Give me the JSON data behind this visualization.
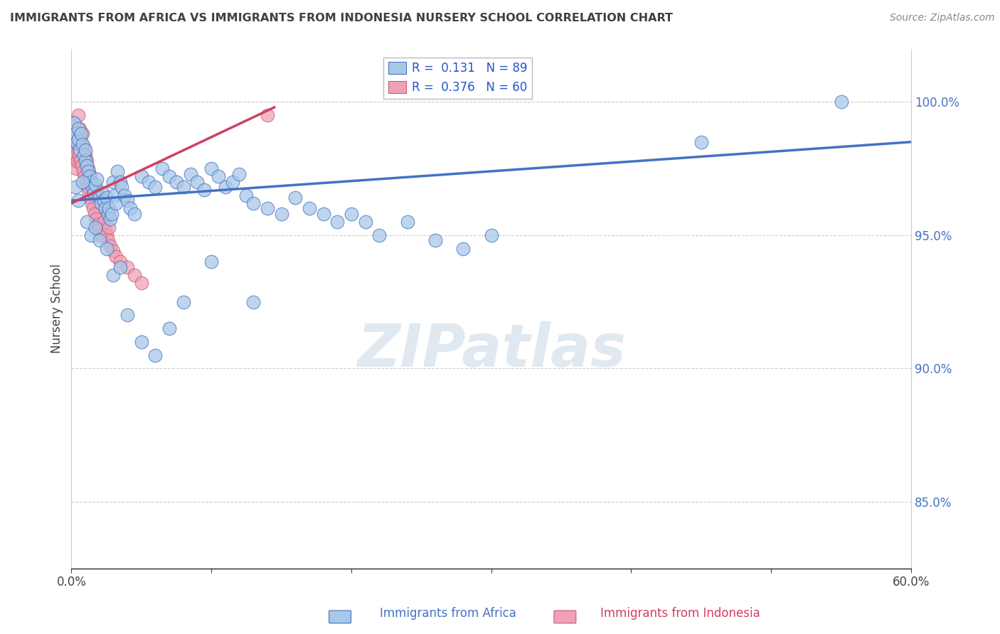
{
  "title": "IMMIGRANTS FROM AFRICA VS IMMIGRANTS FROM INDONESIA NURSERY SCHOOL CORRELATION CHART",
  "source": "Source: ZipAtlas.com",
  "xlabel_blue": "Immigrants from Africa",
  "xlabel_pink": "Immigrants from Indonesia",
  "ylabel": "Nursery School",
  "xlim": [
    0.0,
    60.0
  ],
  "ylim": [
    82.5,
    102.0
  ],
  "yticks": [
    85.0,
    90.0,
    95.0,
    100.0
  ],
  "ytick_labels": [
    "85.0%",
    "90.0%",
    "95.0%",
    "100.0%"
  ],
  "xticks": [
    0.0,
    10.0,
    20.0,
    30.0,
    40.0,
    50.0,
    60.0
  ],
  "xtick_labels": [
    "0.0%",
    "",
    "",
    "",
    "",
    "",
    "60.0%"
  ],
  "legend_R_blue": "R =  0.131",
  "legend_N_blue": "N = 89",
  "legend_R_pink": "R =  0.376",
  "legend_N_pink": "N = 60",
  "blue_color": "#a8c8e8",
  "pink_color": "#f0a0b8",
  "trend_blue": "#4472c4",
  "trend_pink": "#d04060",
  "legend_text_color": "#2255cc",
  "title_color": "#404040",
  "blue_scatter_x": [
    0.2,
    0.3,
    0.4,
    0.5,
    0.5,
    0.6,
    0.7,
    0.8,
    0.9,
    1.0,
    1.0,
    1.1,
    1.2,
    1.3,
    1.4,
    1.5,
    1.6,
    1.7,
    1.8,
    1.9,
    2.0,
    2.1,
    2.2,
    2.3,
    2.4,
    2.5,
    2.6,
    2.7,
    2.8,
    2.9,
    3.0,
    3.1,
    3.2,
    3.3,
    3.5,
    3.6,
    3.8,
    4.0,
    4.2,
    4.5,
    5.0,
    5.5,
    6.0,
    6.5,
    7.0,
    7.5,
    8.0,
    8.5,
    9.0,
    9.5,
    10.0,
    10.5,
    11.0,
    11.5,
    12.0,
    12.5,
    13.0,
    14.0,
    15.0,
    16.0,
    17.0,
    18.0,
    19.0,
    20.0,
    21.0,
    22.0,
    24.0,
    26.0,
    28.0,
    30.0,
    0.3,
    0.5,
    0.8,
    1.1,
    1.4,
    1.7,
    2.0,
    2.5,
    3.0,
    3.5,
    4.0,
    5.0,
    6.0,
    7.0,
    8.0,
    10.0,
    13.0,
    55.0,
    45.0
  ],
  "blue_scatter_y": [
    99.2,
    98.8,
    98.5,
    98.6,
    99.0,
    98.2,
    98.8,
    98.4,
    98.0,
    97.8,
    98.2,
    97.6,
    97.4,
    97.2,
    97.0,
    96.8,
    96.6,
    96.9,
    97.1,
    96.5,
    96.4,
    96.2,
    96.6,
    96.3,
    96.0,
    96.4,
    95.8,
    96.0,
    95.6,
    95.8,
    97.0,
    96.5,
    96.2,
    97.4,
    97.0,
    96.8,
    96.5,
    96.3,
    96.0,
    95.8,
    97.2,
    97.0,
    96.8,
    97.5,
    97.2,
    97.0,
    96.8,
    97.3,
    97.0,
    96.7,
    97.5,
    97.2,
    96.8,
    97.0,
    97.3,
    96.5,
    96.2,
    96.0,
    95.8,
    96.4,
    96.0,
    95.8,
    95.5,
    95.8,
    95.5,
    95.0,
    95.5,
    94.8,
    94.5,
    95.0,
    96.8,
    96.3,
    97.0,
    95.5,
    95.0,
    95.3,
    94.8,
    94.5,
    93.5,
    93.8,
    92.0,
    91.0,
    90.5,
    91.5,
    92.5,
    94.0,
    92.5,
    100.0,
    98.5
  ],
  "pink_scatter_x": [
    0.1,
    0.15,
    0.2,
    0.25,
    0.3,
    0.35,
    0.4,
    0.45,
    0.5,
    0.6,
    0.7,
    0.8,
    0.9,
    1.0,
    1.1,
    1.2,
    1.3,
    1.4,
    1.5,
    1.6,
    1.7,
    1.8,
    1.9,
    2.0,
    2.1,
    2.2,
    2.3,
    2.4,
    2.5,
    2.6,
    2.8,
    3.0,
    3.2,
    3.5,
    4.0,
    4.5,
    5.0,
    0.15,
    0.25,
    0.35,
    0.45,
    0.55,
    0.65,
    0.75,
    0.85,
    0.95,
    1.05,
    1.15,
    1.25,
    1.35,
    1.45,
    1.55,
    1.65,
    1.75,
    1.85,
    1.95,
    2.05,
    2.3,
    2.7,
    14.0
  ],
  "pink_scatter_y": [
    98.0,
    98.5,
    97.8,
    98.2,
    98.8,
    97.5,
    98.0,
    97.8,
    99.5,
    99.0,
    98.5,
    98.8,
    98.3,
    98.0,
    97.8,
    97.5,
    97.3,
    97.0,
    96.8,
    96.6,
    96.4,
    96.2,
    96.0,
    95.8,
    96.3,
    95.6,
    95.4,
    95.2,
    95.0,
    94.8,
    94.6,
    94.4,
    94.2,
    94.0,
    93.8,
    93.5,
    93.2,
    99.2,
    98.8,
    98.6,
    98.4,
    98.0,
    97.8,
    97.6,
    97.4,
    97.2,
    97.0,
    96.8,
    96.6,
    96.4,
    96.2,
    96.0,
    95.8,
    95.6,
    95.4,
    95.2,
    95.0,
    95.5,
    95.3,
    99.5
  ],
  "blue_trend_x": [
    0.0,
    60.0
  ],
  "blue_trend_y": [
    96.3,
    98.5
  ],
  "pink_trend_x": [
    0.0,
    14.5
  ],
  "pink_trend_y": [
    96.2,
    99.8
  ]
}
